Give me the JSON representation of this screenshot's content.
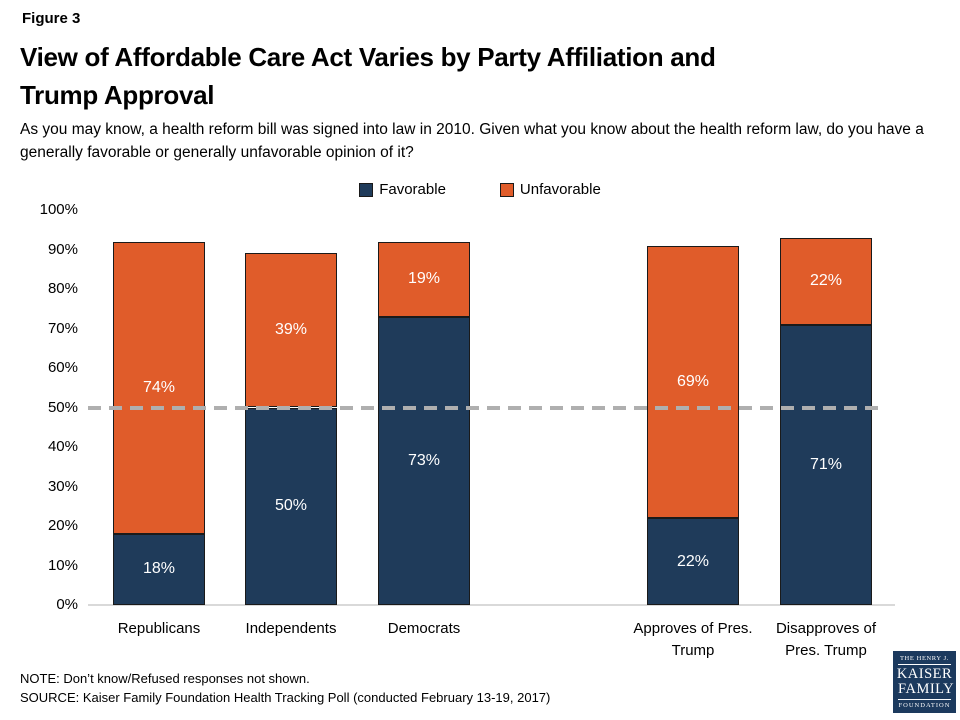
{
  "header": {
    "figure_label": "Figure 3",
    "title_line1": "View of Affordable Care Act Varies by Party Affiliation and",
    "title_line2": "Trump Approval",
    "subtitle": "As you may know, a health reform bill was signed into law in 2010. Given what you know about the health reform law, do you have a generally favorable or generally unfavorable opinion of it?"
  },
  "chart_data": {
    "type": "bar",
    "stacked": true,
    "title": "View of Affordable Care Act Varies by Party Affiliation and Trump Approval",
    "categories": [
      "Republicans",
      "Independents",
      "Democrats",
      "Approves of Pres. Trump",
      "Disapproves of Pres. Trump"
    ],
    "categories_display": [
      [
        "Republicans"
      ],
      [
        "Independents"
      ],
      [
        "Democrats"
      ],
      [
        "Approves of Pres.",
        "Trump"
      ],
      [
        "Disapproves of",
        "Pres. Trump"
      ]
    ],
    "series": [
      {
        "name": "Favorable",
        "color": "#1f3b5a",
        "values": [
          18,
          50,
          73,
          22,
          71
        ]
      },
      {
        "name": "Unfavorable",
        "color": "#e05c2a",
        "values": [
          74,
          39,
          19,
          69,
          22
        ]
      }
    ],
    "value_label_suffix": "%",
    "ylim": [
      0,
      100
    ],
    "ytick_step": 10,
    "ytick_suffix": "%",
    "reference_line_y": 50,
    "legend_position": "top",
    "grid": false,
    "colors": {
      "favorable": "#1f3b5a",
      "unfavorable": "#e05c2a",
      "reference_line": "#afafaf",
      "axis_line": "#d9d9d9",
      "bar_border": "#1a1a1a"
    }
  },
  "footer": {
    "note": "NOTE: Don’t know/Refused responses not shown.",
    "source": "SOURCE: Kaiser Family Foundation Health Tracking Poll (conducted February 13-19, 2017)",
    "logo": {
      "line1": "THE HENRY J.",
      "line2": "KAISER",
      "line3": "FAMILY",
      "line4": "FOUNDATION"
    }
  }
}
